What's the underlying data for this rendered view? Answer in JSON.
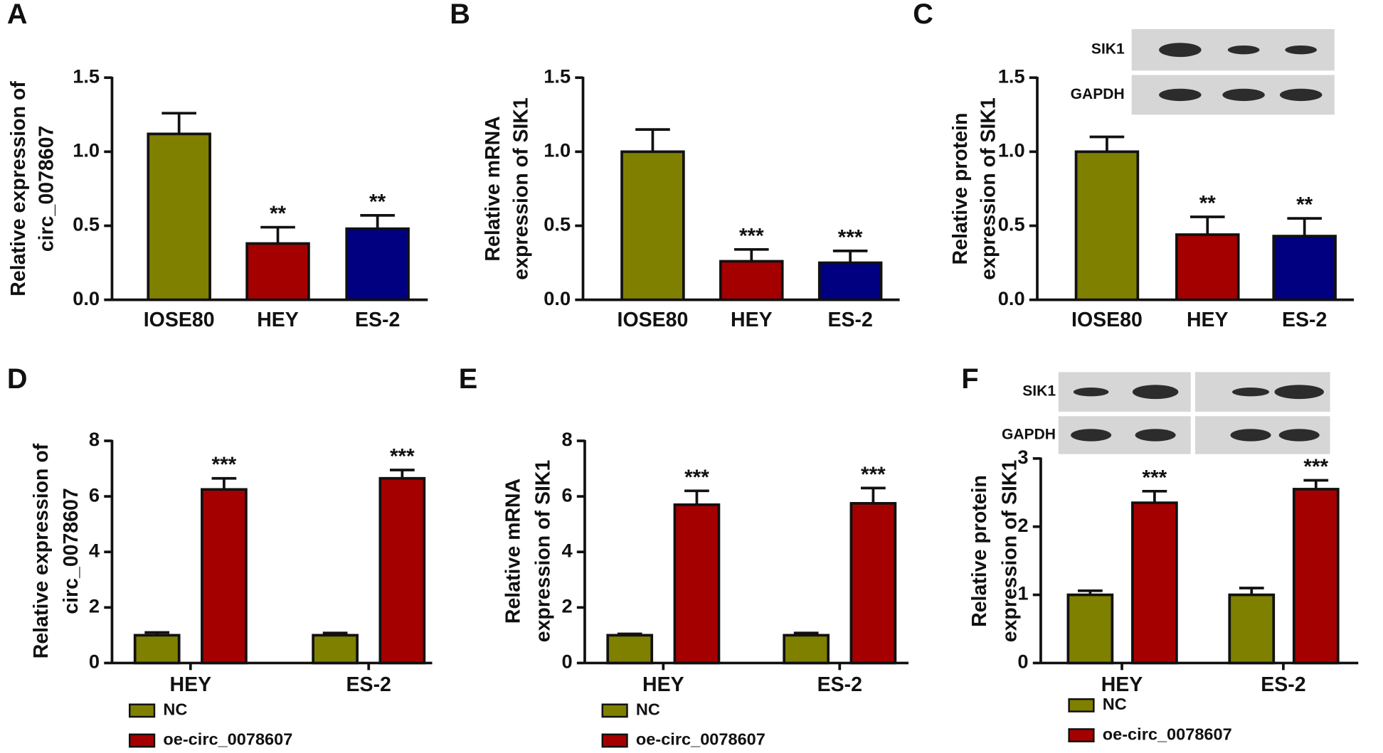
{
  "chart_data": [
    {
      "type": "bar",
      "panel": "A",
      "ylabel": [
        "Relative expression of",
        "circ_0078607"
      ],
      "categories": [
        "IOSE80",
        "HEY",
        "ES-2"
      ],
      "values": [
        1.12,
        0.38,
        0.48
      ],
      "errors": [
        0.14,
        0.11,
        0.09
      ],
      "colors": [
        "#808000",
        "#a50000",
        "#000080"
      ],
      "annotations": [
        null,
        "**",
        "**"
      ],
      "ylim": [
        0,
        1.5
      ],
      "yticks": [
        {
          "value": 0,
          "label": "0.0"
        },
        {
          "value": 0.5,
          "label": "0.5"
        },
        {
          "value": 1,
          "label": "1.0"
        },
        {
          "value": 1.5,
          "label": "1.5"
        }
      ]
    },
    {
      "type": "bar",
      "panel": "B",
      "ylabel": [
        "Relative  mRNA",
        "expression of SIK1"
      ],
      "categories": [
        "IOSE80",
        "HEY",
        "ES-2"
      ],
      "values": [
        1.0,
        0.26,
        0.25
      ],
      "errors": [
        0.15,
        0.08,
        0.08
      ],
      "colors": [
        "#808000",
        "#a50000",
        "#000080"
      ],
      "annotations": [
        null,
        "***",
        "***"
      ],
      "ylim": [
        0,
        1.5
      ],
      "yticks": [
        {
          "value": 0,
          "label": "0.0"
        },
        {
          "value": 0.5,
          "label": "0.5"
        },
        {
          "value": 1,
          "label": "1.0"
        },
        {
          "value": 1.5,
          "label": "1.5"
        }
      ]
    },
    {
      "type": "bar",
      "panel": "C",
      "ylabel": [
        "Relative  protein",
        "expression of SIK1"
      ],
      "blot_labels": [
        "SIK1",
        "GAPDH"
      ],
      "categories": [
        "IOSE80",
        "HEY",
        "ES-2"
      ],
      "values": [
        1.0,
        0.44,
        0.43
      ],
      "errors": [
        0.1,
        0.12,
        0.12
      ],
      "colors": [
        "#808000",
        "#a50000",
        "#000080"
      ],
      "annotations": [
        null,
        "**",
        "**"
      ],
      "ylim": [
        0,
        1.5
      ],
      "yticks": [
        {
          "value": 0,
          "label": "0.0"
        },
        {
          "value": 0.5,
          "label": "0.5"
        },
        {
          "value": 1,
          "label": "1.0"
        },
        {
          "value": 1.5,
          "label": "1.5"
        }
      ]
    },
    {
      "type": "grouped_bar",
      "panel": "D",
      "ylabel": [
        "Relative expression of",
        "circ_0078607"
      ],
      "categories": [
        "HEY",
        "ES-2"
      ],
      "series": [
        {
          "name": "NC",
          "color": "#808000",
          "values": [
            1.0,
            1.0
          ],
          "errors": [
            0.1,
            0.08
          ],
          "annotations": [
            null,
            null
          ]
        },
        {
          "name": "oe-circ_0078607",
          "color": "#a50000",
          "values": [
            6.25,
            6.65
          ],
          "errors": [
            0.4,
            0.3
          ],
          "annotations": [
            "***",
            "***"
          ]
        }
      ],
      "ylim": [
        0,
        8
      ],
      "yticks": [
        0,
        2,
        4,
        6,
        8
      ]
    },
    {
      "type": "grouped_bar",
      "panel": "E",
      "ylabel": [
        "Relative  mRNA",
        "expression of SIK1"
      ],
      "categories": [
        "HEY",
        "ES-2"
      ],
      "series": [
        {
          "name": "NC",
          "color": "#808000",
          "values": [
            1.0,
            1.0
          ],
          "errors": [
            0.05,
            0.08
          ],
          "annotations": [
            null,
            null
          ]
        },
        {
          "name": "oe-circ_0078607",
          "color": "#a50000",
          "values": [
            5.7,
            5.75
          ],
          "errors": [
            0.5,
            0.55
          ],
          "annotations": [
            "***",
            "***"
          ]
        }
      ],
      "ylim": [
        0,
        8
      ],
      "yticks": [
        0,
        2,
        4,
        6,
        8
      ]
    },
    {
      "type": "grouped_bar",
      "panel": "F",
      "ylabel": [
        "Relative  protein",
        "expression of SIK1"
      ],
      "blot_labels": [
        "SIK1",
        "GAPDH"
      ],
      "categories": [
        "HEY",
        "ES-2"
      ],
      "series": [
        {
          "name": "NC",
          "color": "#808000",
          "values": [
            1.0,
            1.0
          ],
          "errors": [
            0.06,
            0.1
          ],
          "annotations": [
            null,
            null
          ]
        },
        {
          "name": "oe-circ_0078607",
          "color": "#a50000",
          "values": [
            2.35,
            2.55
          ],
          "errors": [
            0.17,
            0.13
          ],
          "annotations": [
            "***",
            "***"
          ]
        }
      ],
      "ylim": [
        0,
        3
      ],
      "yticks": [
        0,
        1,
        2,
        3
      ]
    }
  ]
}
